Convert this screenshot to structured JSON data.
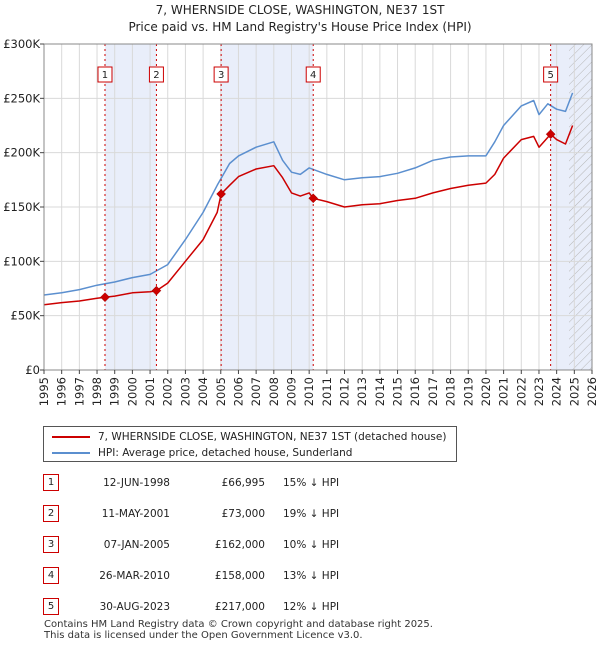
{
  "chart_data": {
    "type": "line",
    "title": "7, WHERNSIDE CLOSE, WASHINGTON, NE37 1ST",
    "subtitle": "Price paid vs. HM Land Registry's House Price Index (HPI)",
    "xlim": [
      1995,
      2026
    ],
    "ylim": [
      0,
      300000
    ],
    "x_ticks": [
      "1995",
      "1996",
      "1997",
      "1998",
      "1999",
      "2000",
      "2001",
      "2002",
      "2003",
      "2004",
      "2005",
      "2006",
      "2007",
      "2008",
      "2009",
      "2010",
      "2011",
      "2012",
      "2013",
      "2014",
      "2015",
      "2016",
      "2017",
      "2018",
      "2019",
      "2020",
      "2021",
      "2022",
      "2023",
      "2024",
      "2025",
      "2026"
    ],
    "y_ticks": [
      {
        "value": 0,
        "label": "£0"
      },
      {
        "value": 50000,
        "label": "£50K"
      },
      {
        "value": 100000,
        "label": "£100K"
      },
      {
        "value": 150000,
        "label": "£150K"
      },
      {
        "value": 200000,
        "label": "£200K"
      },
      {
        "value": 250000,
        "label": "£250K"
      },
      {
        "value": 300000,
        "label": "£300K"
      }
    ],
    "grid": true,
    "shaded_periods": [
      [
        1998.45,
        2001.36
      ],
      [
        2005.02,
        2010.23
      ],
      [
        2023.66,
        2026
      ]
    ],
    "hatched_from": 2024.7,
    "series": [
      {
        "name": "7, WHERNSIDE CLOSE, WASHINGTON, NE37 1ST (detached house)",
        "color": "#cc0000",
        "x": [
          1995,
          1996,
          1997,
          1998,
          1998.45,
          1999,
          2000,
          2001,
          2001.36,
          2002,
          2003,
          2004,
          2004.8,
          2005.02,
          2005.5,
          2006,
          2007,
          2008,
          2008.5,
          2009,
          2009.5,
          2010,
          2010.23,
          2011,
          2012,
          2013,
          2014,
          2015,
          2016,
          2017,
          2018,
          2019,
          2020,
          2020.5,
          2021,
          2022,
          2022.7,
          2023,
          2023.66,
          2024,
          2024.5,
          2024.9
        ],
        "values": [
          60000,
          62000,
          63500,
          66000,
          66995,
          68000,
          71000,
          72000,
          73000,
          80000,
          100000,
          120000,
          145000,
          162000,
          170000,
          178000,
          185000,
          188000,
          177000,
          163000,
          160000,
          163000,
          158000,
          155000,
          150000,
          152000,
          153000,
          156000,
          158000,
          163000,
          167000,
          170000,
          172000,
          180000,
          195000,
          212000,
          215000,
          205000,
          217000,
          212000,
          208000,
          225000
        ]
      },
      {
        "name": "HPI: Average price, detached house, Sunderland",
        "color": "#5b8fcf",
        "x": [
          1995,
          1996,
          1997,
          1998,
          1999,
          2000,
          2001,
          2002,
          2003,
          2004,
          2004.8,
          2005.5,
          2006,
          2007,
          2008,
          2008.5,
          2009,
          2009.5,
          2010,
          2011,
          2012,
          2013,
          2014,
          2015,
          2016,
          2017,
          2018,
          2019,
          2020,
          2020.5,
          2021,
          2022,
          2022.7,
          2023,
          2023.5,
          2024,
          2024.5,
          2024.9
        ],
        "values": [
          69000,
          71000,
          74000,
          78000,
          81000,
          85000,
          88000,
          97000,
          120000,
          145000,
          170000,
          190000,
          197000,
          205000,
          210000,
          193000,
          182000,
          180000,
          186000,
          180000,
          175000,
          177000,
          178000,
          181000,
          186000,
          193000,
          196000,
          197000,
          197000,
          210000,
          225000,
          243000,
          248000,
          235000,
          245000,
          240000,
          238000,
          255000
        ]
      }
    ],
    "sales": [
      {
        "n": "1",
        "x": 1998.45,
        "price": 66995
      },
      {
        "n": "2",
        "x": 2001.36,
        "price": 73000
      },
      {
        "n": "3",
        "x": 2005.02,
        "price": 162000
      },
      {
        "n": "4",
        "x": 2010.23,
        "price": 158000
      },
      {
        "n": "5",
        "x": 2023.66,
        "price": 217000
      }
    ]
  },
  "legend": {
    "series_red": "7, WHERNSIDE CLOSE, WASHINGTON, NE37 1ST (detached house)",
    "series_blue": "HPI: Average price, detached house, Sunderland"
  },
  "sales_table": [
    {
      "n": "1",
      "date": "12-JUN-1998",
      "price": "£66,995",
      "hpi": "15% ↓ HPI"
    },
    {
      "n": "2",
      "date": "11-MAY-2001",
      "price": "£73,000",
      "hpi": "19% ↓ HPI"
    },
    {
      "n": "3",
      "date": "07-JAN-2005",
      "price": "£162,000",
      "hpi": "10% ↓ HPI"
    },
    {
      "n": "4",
      "date": "26-MAR-2010",
      "price": "£158,000",
      "hpi": "13% ↓ HPI"
    },
    {
      "n": "5",
      "date": "30-AUG-2023",
      "price": "£217,000",
      "hpi": "12% ↓ HPI"
    }
  ],
  "footer": {
    "line1": "Contains HM Land Registry data © Crown copyright and database right 2025.",
    "line2": "This data is licensed under the Open Government Licence v3.0."
  }
}
